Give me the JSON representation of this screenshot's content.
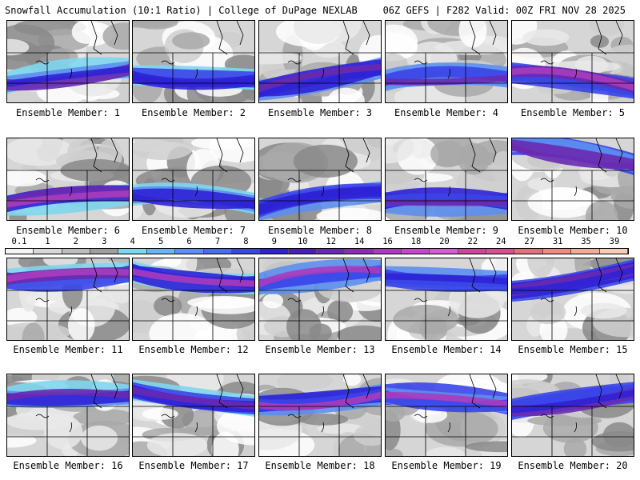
{
  "header": {
    "title": "Snowfall Accumulation (10:1 Ratio) | College of DuPage NEXLAB",
    "model_info": "06Z GEFS | F282 Valid: 00Z FRI NOV 28 2025"
  },
  "legend": {
    "labels": [
      "0.1",
      "1",
      "2",
      "3",
      "4",
      "5",
      "6",
      "7",
      "8",
      "9",
      "10",
      "12",
      "14",
      "16",
      "18",
      "20",
      "22",
      "24",
      "27",
      "31",
      "35",
      "39"
    ],
    "colors": [
      "#f4f4f4",
      "#d8d8d8",
      "#bdbdbd",
      "#9e9e9e",
      "#7fd6ee",
      "#6fb3ee",
      "#5c8ff0",
      "#4a6cf0",
      "#3a45e8",
      "#2f22d6",
      "#4a1fb4",
      "#6a2ab0",
      "#8a2fb2",
      "#a83cbc",
      "#c04ac8",
      "#d35ed2",
      "#c8479c",
      "#d55290",
      "#e0707c",
      "#ea8e82",
      "#f0ad98",
      "#f6cbb8"
    ]
  },
  "panels": [
    {
      "label": "Ensemble Member: 1"
    },
    {
      "label": "Ensemble Member: 2"
    },
    {
      "label": "Ensemble Member: 3"
    },
    {
      "label": "Ensemble Member: 4"
    },
    {
      "label": "Ensemble Member: 5"
    },
    {
      "label": "Ensemble Member: 6"
    },
    {
      "label": "Ensemble Member: 7"
    },
    {
      "label": "Ensemble Member: 8"
    },
    {
      "label": "Ensemble Member: 9"
    },
    {
      "label": "Ensemble Member: 10"
    },
    {
      "label": "Ensemble Member: 11"
    },
    {
      "label": "Ensemble Member: 12"
    },
    {
      "label": "Ensemble Member: 13"
    },
    {
      "label": "Ensemble Member: 14"
    },
    {
      "label": "Ensemble Member: 15"
    },
    {
      "label": "Ensemble Member: 16"
    },
    {
      "label": "Ensemble Member: 17"
    },
    {
      "label": "Ensemble Member: 18"
    },
    {
      "label": "Ensemble Member: 19"
    },
    {
      "label": "Ensemble Member: 20"
    }
  ]
}
